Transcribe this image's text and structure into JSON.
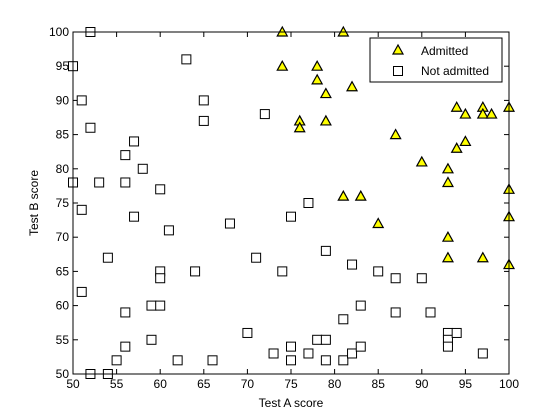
{
  "chart_data": {
    "type": "scatter",
    "xlabel": "Test A score",
    "ylabel": "Test B score",
    "xlim": [
      50,
      100
    ],
    "ylim": [
      50,
      100
    ],
    "xticks": [
      50,
      55,
      60,
      65,
      70,
      75,
      80,
      85,
      90,
      95,
      100
    ],
    "yticks": [
      50,
      55,
      60,
      65,
      70,
      75,
      80,
      85,
      90,
      95,
      100
    ],
    "grid": false,
    "legend_position": "top-right",
    "series": [
      {
        "name": "Admitted",
        "marker": "triangle",
        "color": "#ffff00",
        "edge_color": "#000000",
        "points": [
          [
            74,
            100
          ],
          [
            81,
            100
          ],
          [
            74,
            95
          ],
          [
            78,
            95
          ],
          [
            78,
            93
          ],
          [
            82,
            92
          ],
          [
            79,
            91
          ],
          [
            94,
            89
          ],
          [
            97,
            89
          ],
          [
            100,
            89
          ],
          [
            95,
            88
          ],
          [
            97,
            88
          ],
          [
            98,
            88
          ],
          [
            76,
            87
          ],
          [
            79,
            87
          ],
          [
            76,
            86
          ],
          [
            87,
            85
          ],
          [
            95,
            84
          ],
          [
            94,
            83
          ],
          [
            90,
            81
          ],
          [
            93,
            80
          ],
          [
            93,
            78
          ],
          [
            100,
            77
          ],
          [
            81,
            76
          ],
          [
            83,
            76
          ],
          [
            85,
            72
          ],
          [
            100,
            73
          ],
          [
            93,
            70
          ],
          [
            93,
            67
          ],
          [
            97,
            67
          ],
          [
            100,
            66
          ]
        ]
      },
      {
        "name": "Not admitted",
        "marker": "square",
        "color": "#ffffff",
        "edge_color": "#000000",
        "points": [
          [
            52,
            100
          ],
          [
            50,
            95
          ],
          [
            63,
            96
          ],
          [
            51,
            90
          ],
          [
            65,
            90
          ],
          [
            52,
            86
          ],
          [
            65,
            87
          ],
          [
            72,
            88
          ],
          [
            57,
            84
          ],
          [
            56,
            82
          ],
          [
            58,
            80
          ],
          [
            50,
            78
          ],
          [
            53,
            78
          ],
          [
            56,
            78
          ],
          [
            60,
            77
          ],
          [
            51,
            74
          ],
          [
            57,
            73
          ],
          [
            61,
            71
          ],
          [
            68,
            72
          ],
          [
            77,
            75
          ],
          [
            75,
            73
          ],
          [
            54,
            67
          ],
          [
            71,
            67
          ],
          [
            60,
            65
          ],
          [
            60,
            64
          ],
          [
            64,
            65
          ],
          [
            74,
            65
          ],
          [
            79,
            68
          ],
          [
            82,
            66
          ],
          [
            85,
            65
          ],
          [
            87,
            64
          ],
          [
            90,
            64
          ],
          [
            51,
            62
          ],
          [
            56,
            59
          ],
          [
            59,
            60
          ],
          [
            60,
            60
          ],
          [
            81,
            58
          ],
          [
            83,
            60
          ],
          [
            87,
            59
          ],
          [
            91,
            59
          ],
          [
            56,
            54
          ],
          [
            55,
            52
          ],
          [
            59,
            55
          ],
          [
            62,
            52
          ],
          [
            66,
            52
          ],
          [
            70,
            56
          ],
          [
            73,
            53
          ],
          [
            75,
            54
          ],
          [
            75,
            52
          ],
          [
            77,
            53
          ],
          [
            78,
            55
          ],
          [
            79,
            55
          ],
          [
            81,
            52
          ],
          [
            82,
            53
          ],
          [
            83,
            54
          ],
          [
            79,
            52
          ],
          [
            93,
            56
          ],
          [
            93,
            55
          ],
          [
            93,
            54
          ],
          [
            94,
            56
          ],
          [
            97,
            53
          ],
          [
            52,
            50
          ],
          [
            54,
            50
          ]
        ]
      }
    ]
  }
}
